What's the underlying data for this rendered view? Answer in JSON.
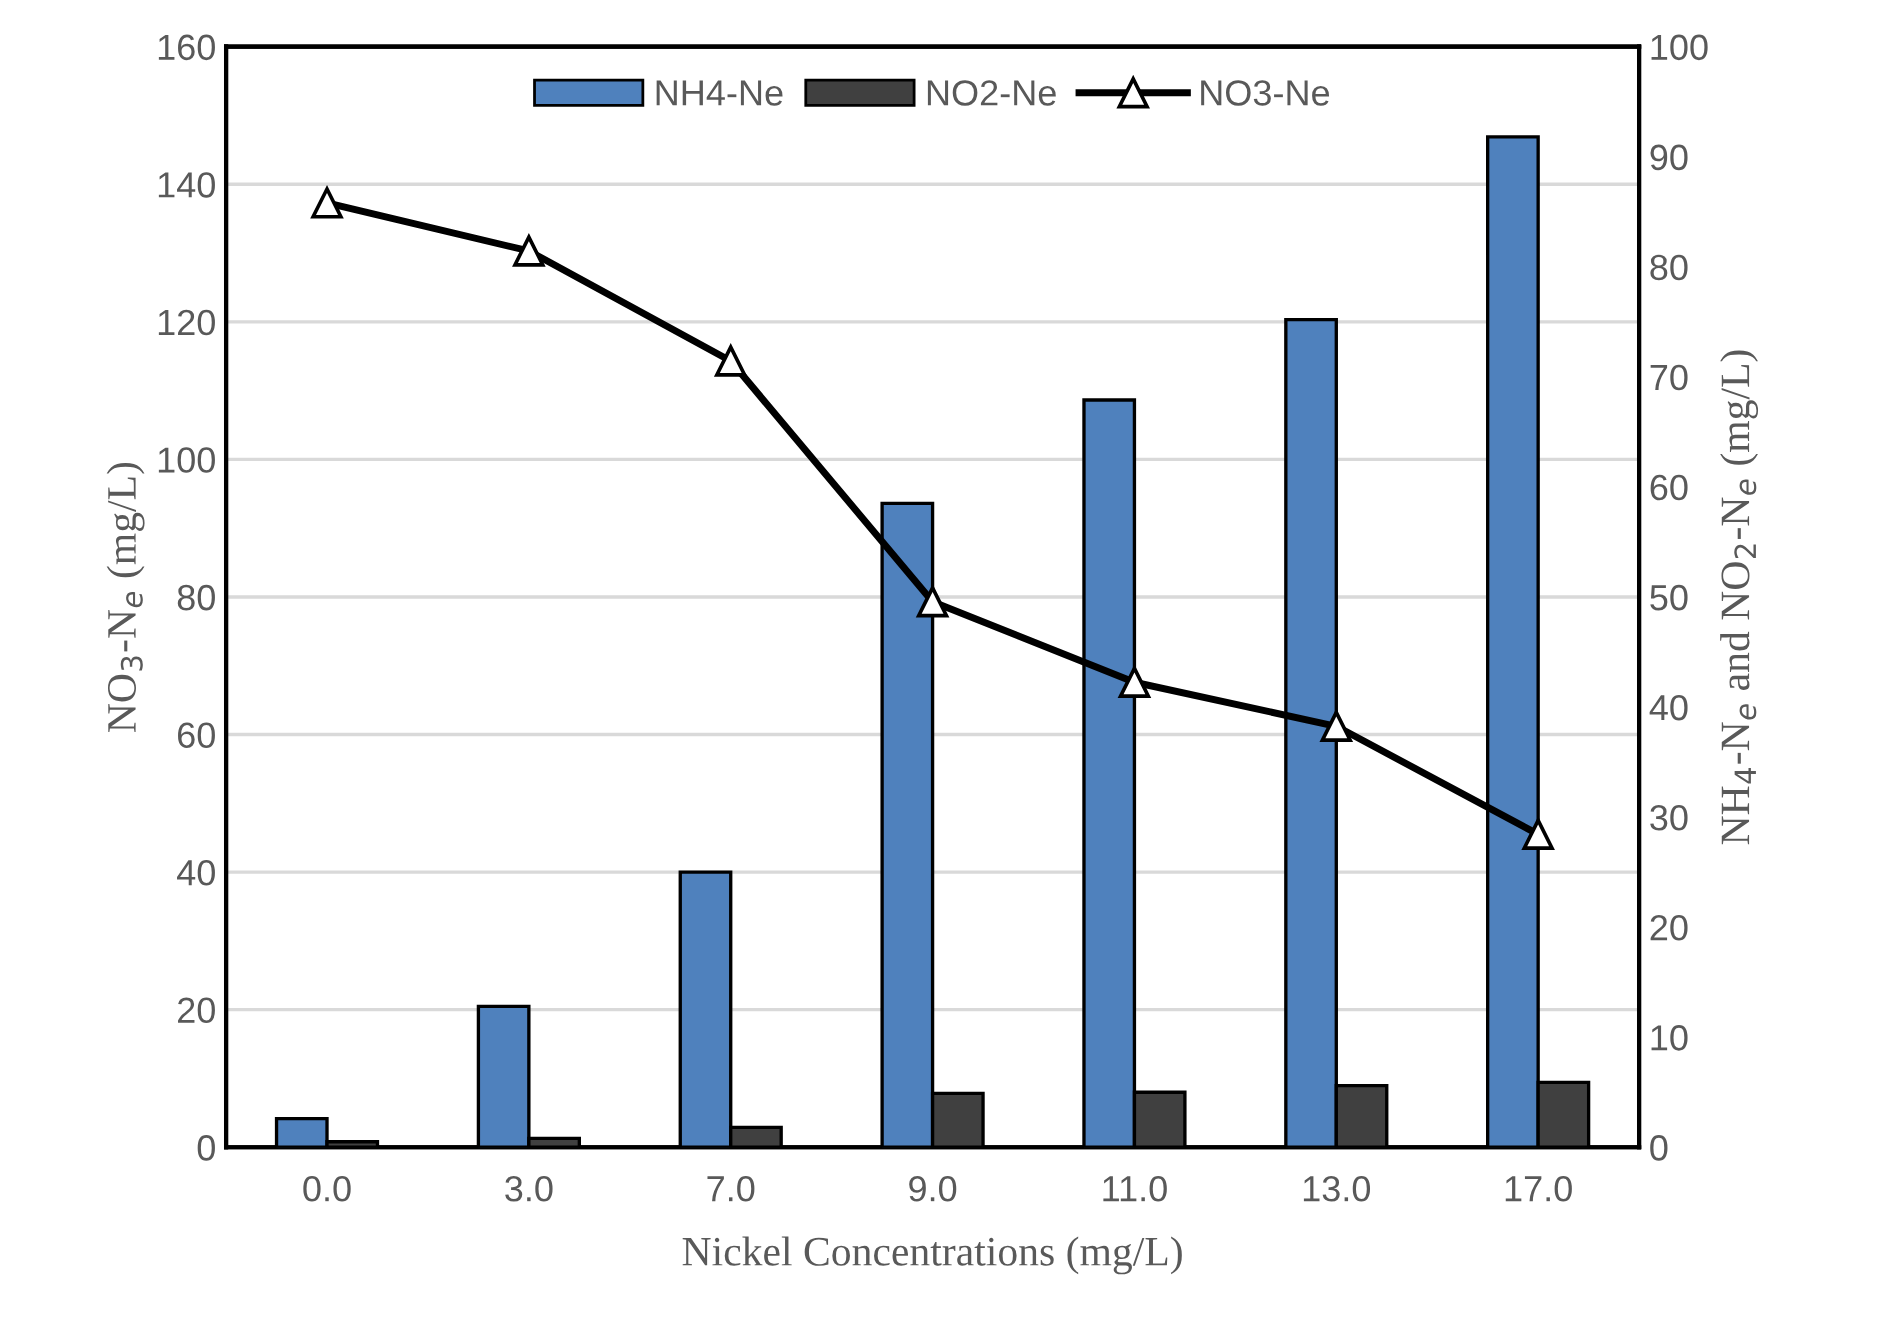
{
  "chart_data": {
    "type": "bar",
    "xlabel": "Nickel Concentrations (mg/L)",
    "ylabel": "NO$_{3}$-N$_{e}$ (mg/L)",
    "y2label": "NH$_{4}$-N$_{e}$ and NO$_{2}$-N$_{e}$ (mg/L)",
    "categories": [
      "0.0",
      "3.0",
      "7.0",
      "9.0",
      "11.0",
      "13.0",
      "17.0"
    ],
    "series": [
      {
        "name": "NH4-Ne",
        "axis": "y2",
        "color": "#4f81bd",
        "values": [
          2.6,
          12.8,
          25.0,
          58.5,
          67.9,
          75.2,
          91.8
        ]
      },
      {
        "name": "NO2-Ne",
        "axis": "y2",
        "color": "#404040",
        "values": [
          0.5,
          0.8,
          1.8,
          4.9,
          5.0,
          5.6,
          5.9
        ]
      },
      {
        "name": "NO3-Ne",
        "type": "line",
        "color": "#000000",
        "marker": "triangle",
        "values": [
          137.3,
          130.3,
          114.3,
          79.3,
          67.6,
          61.2,
          45.5
        ]
      }
    ],
    "ylim": [
      0,
      160
    ],
    "yticks": [
      0,
      20,
      40,
      60,
      80,
      100,
      120,
      140,
      160
    ],
    "y2lim": [
      0,
      100
    ],
    "y2ticks": [
      0,
      10,
      20,
      30,
      40,
      50,
      60,
      70,
      80,
      90,
      100
    ],
    "grid": "y",
    "legend": "top"
  }
}
